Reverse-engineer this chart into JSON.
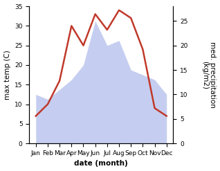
{
  "months": [
    "Jan",
    "Feb",
    "Mar",
    "Apr",
    "May",
    "Jun",
    "Jul",
    "Aug",
    "Sep",
    "Oct",
    "Nov",
    "Dec"
  ],
  "temp": [
    7,
    10,
    16,
    30,
    25,
    33,
    29,
    34,
    32,
    24,
    9,
    7
  ],
  "precip": [
    10,
    9,
    11,
    13,
    16,
    25,
    20,
    21,
    15,
    14,
    13,
    10
  ],
  "temp_color": "#c0392b",
  "precip_fill_color": "#c5cef0",
  "ylabel_left": "max temp (C)",
  "ylabel_right": "med. precipitation\n(kg/m2)",
  "xlabel": "date (month)",
  "ylim_left": [
    0,
    35
  ],
  "ylim_right": [
    0,
    28
  ],
  "bg_color": "#ffffff",
  "label_fontsize": 7.5,
  "tick_fontsize": 6.5
}
